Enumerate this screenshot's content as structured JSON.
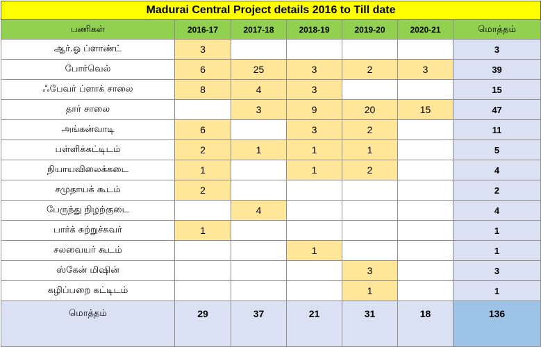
{
  "title": "Madurai Central Project details 2016 to Till date",
  "headers": {
    "label": "பணிகள்",
    "years": [
      "2016-17",
      "2017-18",
      "2018-19",
      "2019-20",
      "2020-21"
    ],
    "total": "மொத்தம்"
  },
  "rows": [
    {
      "name": "ஆர்.ஓ ப்ளாண்ட்",
      "values": [
        "3",
        "",
        "",
        "",
        ""
      ],
      "total": "3"
    },
    {
      "name": "போர்வெல்",
      "values": [
        "6",
        "25",
        "3",
        "2",
        "3"
      ],
      "total": "39"
    },
    {
      "name": "ஃபேவர் ப்ளாக் சாலை",
      "values": [
        "8",
        "4",
        "3",
        "",
        ""
      ],
      "total": "15"
    },
    {
      "name": "தார் சாலை",
      "values": [
        "",
        "3",
        "9",
        "20",
        "15"
      ],
      "total": "47"
    },
    {
      "name": "அங்கன்வாடி",
      "values": [
        "6",
        "",
        "3",
        "2",
        ""
      ],
      "total": "11"
    },
    {
      "name": "பள்ளிக்கட்டிடம்",
      "values": [
        "2",
        "1",
        "1",
        "1",
        ""
      ],
      "total": "5"
    },
    {
      "name": "நியாயவிலைக்கடை",
      "values": [
        "1",
        "",
        "1",
        "2",
        ""
      ],
      "total": "4"
    },
    {
      "name": "சமுதாயக் கூடம்",
      "values": [
        "2",
        "",
        "",
        "",
        ""
      ],
      "total": "2"
    },
    {
      "name": "பேருந்து நிழற்குடை",
      "values": [
        "",
        "4",
        "",
        "",
        ""
      ],
      "total": "4"
    },
    {
      "name": "பார்க் சுற்றுச்சுவர்",
      "values": [
        "1",
        "",
        "",
        "",
        ""
      ],
      "total": "1"
    },
    {
      "name": "சலவையர் கூடம்",
      "values": [
        "",
        "",
        "1",
        "",
        ""
      ],
      "total": "1"
    },
    {
      "name": "ஸ்கேன் மிஷின்",
      "values": [
        "",
        "",
        "",
        "3",
        ""
      ],
      "total": "3"
    },
    {
      "name": "கழிப்பறை கட்டிடம்",
      "values": [
        "",
        "",
        "",
        "1",
        ""
      ],
      "total": "1"
    }
  ],
  "footer": {
    "label": "மொத்தம்",
    "values": [
      "29",
      "37",
      "21",
      "31",
      "18"
    ],
    "grand_total": "136"
  },
  "colors": {
    "title_bg": "#ffff00",
    "header_bg": "#92d050",
    "filled_cell_bg": "#ffe699",
    "total_col_bg": "#d9e1f2",
    "grand_total_bg": "#9dc3e6"
  }
}
